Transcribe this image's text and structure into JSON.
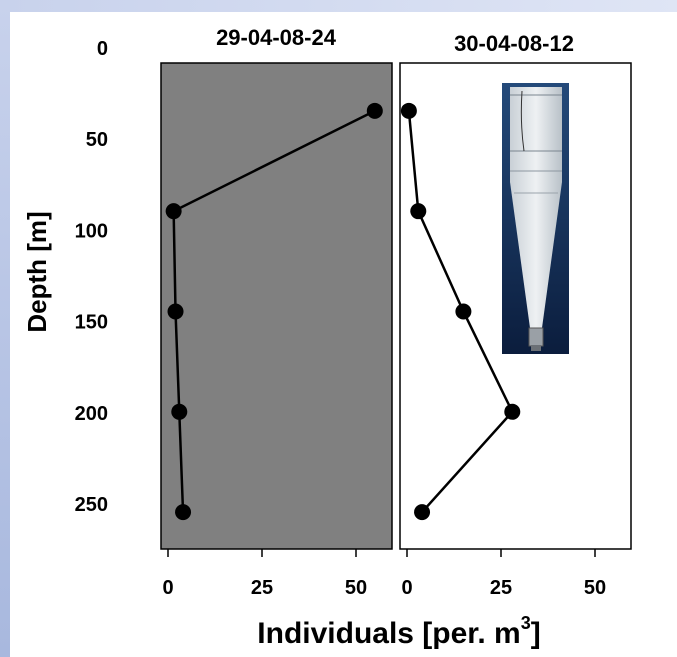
{
  "chart_data": [
    {
      "type": "line",
      "title": "29-04-08-24",
      "xlabel": "",
      "ylabel": "Depth [m]",
      "xlim": [
        0,
        60
      ],
      "ylim": [
        0,
        280
      ],
      "y_inverted": true,
      "x_ticks": [
        "0",
        "25",
        "50"
      ],
      "y_ticks": [
        "0",
        "50",
        "100",
        "150",
        "200",
        "250"
      ],
      "background": "#808080",
      "series": [
        {
          "x": [
            55,
            1.5,
            2,
            3,
            4
          ],
          "y": [
            35,
            90,
            145,
            200,
            255
          ]
        }
      ]
    },
    {
      "type": "line",
      "title": "30-04-08-12",
      "xlabel": "",
      "ylabel": "",
      "xlim": [
        0,
        60
      ],
      "ylim": [
        0,
        280
      ],
      "y_inverted": true,
      "x_ticks": [
        "0",
        "25",
        "50"
      ],
      "background": "#ffffff",
      "series": [
        {
          "x": [
            0.5,
            3,
            15,
            28,
            4
          ],
          "y": [
            35,
            90,
            145,
            200,
            255
          ]
        }
      ]
    }
  ],
  "shared": {
    "xlabel_text": "Individuals [per. m",
    "xlabel_sup": "3",
    "xlabel_close": "]",
    "ylabel": "Depth [m]"
  },
  "colors": {
    "panel_left_bg": "#808080",
    "panel_right_bg": "#ffffff",
    "marker": "#000000",
    "line": "#000000"
  },
  "inset": {
    "icon": "plankton-net-photo"
  }
}
